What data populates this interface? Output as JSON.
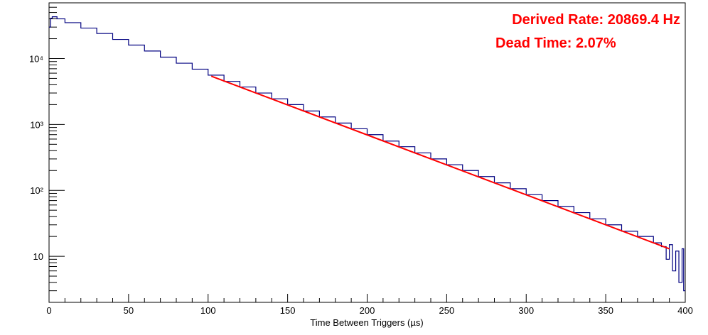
{
  "chart_data": {
    "type": "line",
    "title": "",
    "xlabel": "Time Between Triggers (µs)",
    "ylabel": "",
    "xlim": [
      0,
      400
    ],
    "ylim": [
      2,
      70000
    ],
    "y_scale": "log",
    "grid": false,
    "x_ticks": [
      0,
      50,
      100,
      150,
      200,
      250,
      300,
      350,
      400
    ],
    "x_tick_labels": [
      "0",
      "50",
      "100",
      "150",
      "200",
      "250",
      "300",
      "350",
      "400"
    ],
    "y_ticks": [
      10,
      100,
      1000,
      10000
    ],
    "y_tick_labels": [
      "10",
      "10²",
      "10³",
      "10⁴"
    ],
    "annotations": [
      {
        "text": "Derived Rate: 20869.4 Hz",
        "color": "#ff0000"
      },
      {
        "text": "Dead Time: 2.07%",
        "color": "#ff0000"
      }
    ],
    "series": [
      {
        "style": "histogram",
        "color": "#000080",
        "x": [
          0,
          1,
          2,
          3,
          5,
          10,
          20,
          30,
          40,
          50,
          60,
          70,
          80,
          90,
          100,
          110,
          120,
          130,
          140,
          150,
          160,
          170,
          180,
          190,
          200,
          210,
          220,
          230,
          240,
          250,
          260,
          270,
          280,
          290,
          300,
          310,
          320,
          330,
          340,
          350,
          360,
          370,
          380,
          385,
          388,
          390,
          392,
          394,
          396,
          398,
          399
        ],
        "y": [
          30000,
          41000,
          43000,
          43000,
          40000,
          35000,
          29000,
          24000,
          19500,
          16000,
          13000,
          10500,
          8500,
          6900,
          5600,
          4500,
          3700,
          3000,
          2450,
          2000,
          1600,
          1300,
          1050,
          860,
          700,
          560,
          460,
          370,
          300,
          245,
          200,
          162,
          130,
          106,
          86,
          70,
          57,
          46,
          37,
          30,
          24,
          20,
          16,
          14,
          9,
          15,
          6,
          12,
          4,
          13,
          3
        ]
      },
      {
        "style": "fit",
        "color": "#ff0000",
        "x": [
          102,
          390
        ],
        "y": [
          5400,
          13
        ]
      }
    ]
  }
}
